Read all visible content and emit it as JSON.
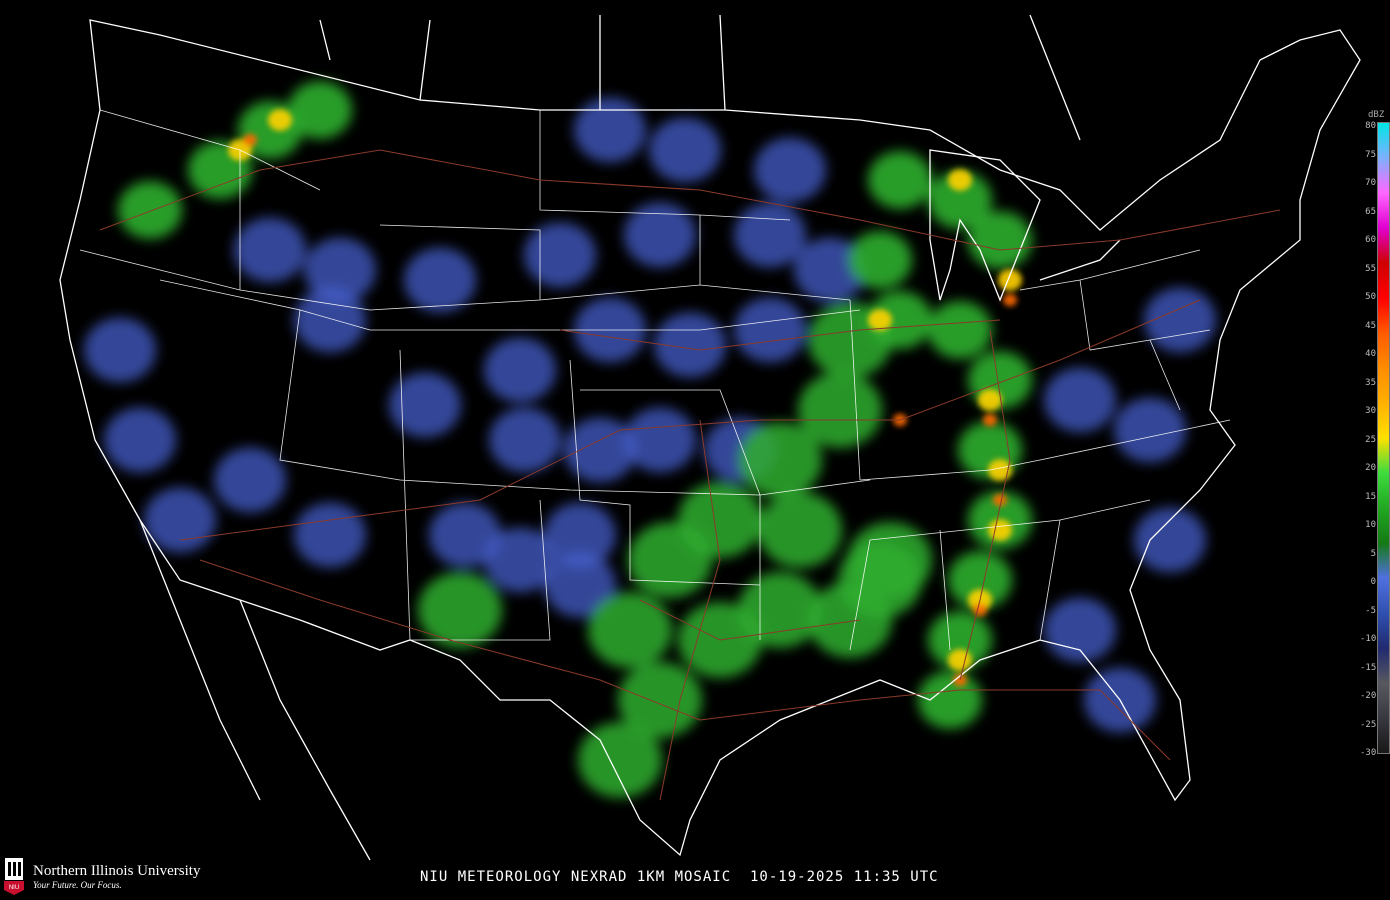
{
  "caption": "NIU METEOROLOGY NEXRAD 1KM MOSAIC  10-19-2025 11:35 UTC",
  "logo": {
    "name": "Northern Illinois University",
    "tagline": "Your Future. Our Focus.",
    "badge": "NIU",
    "brand_color": "#c8102e"
  },
  "legend": {
    "unit": "dBZ",
    "ticks": [
      "80",
      "75",
      "70",
      "65",
      "60",
      "55",
      "50",
      "45",
      "40",
      "35",
      "30",
      "25",
      "20",
      "15",
      "10",
      "5",
      "0",
      "-5",
      "-10",
      "-15",
      "-20",
      "-25",
      "-30"
    ],
    "colors": [
      "#00e5e5",
      "#7fb0ff",
      "#ff66ff",
      "#e000d0",
      "#d00000",
      "#ff0000",
      "#ff5a00",
      "#ff8c00",
      "#ffb000",
      "#ffe000",
      "#3ddc3d",
      "#21a821",
      "#147a14",
      "#5070e0",
      "#3050b0",
      "#202a70",
      "#585860",
      "#383840",
      "#181818"
    ]
  }
}
